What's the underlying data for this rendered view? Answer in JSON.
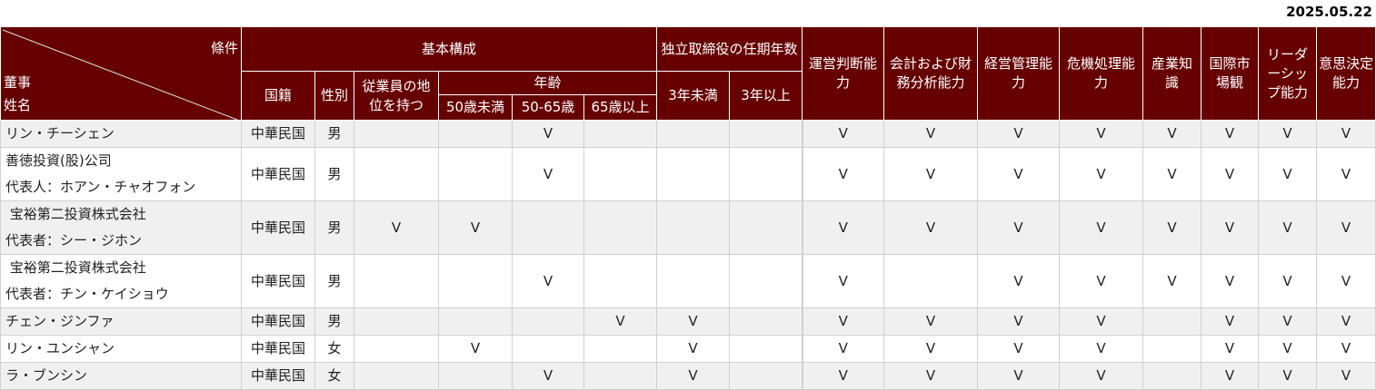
{
  "date": "2025.05.22",
  "header": {
    "corner_condition": "條件",
    "corner_director": "董事",
    "corner_name": "姓名",
    "basic": "基本構成",
    "nationality": "国籍",
    "gender": "性別",
    "employee": "従業員の地位を持つ",
    "age": "年齢",
    "age_under50": "50歳未満",
    "age_50_65": "50-65歳",
    "age_over65": "65歳以上",
    "tenure": "独立取締役の任期年数",
    "tenure_under3": "3年未満",
    "tenure_over3": "3年以上",
    "skills": [
      "運営判断能力",
      "会計および財務分析能力",
      "経営管理能力",
      "危機処理能力",
      "産業知識",
      "国際市場観",
      "リーダーシップ能力",
      "意思決定能力"
    ]
  },
  "check_mark": "V",
  "rows": [
    {
      "name": [
        "リン・チーシェン"
      ],
      "nationality": "中華民国",
      "gender": "男",
      "marks": [
        0,
        0,
        1,
        0,
        0,
        0,
        1,
        1,
        1,
        1,
        1,
        1,
        1,
        1
      ]
    },
    {
      "name": [
        "善徳投資(股)公司",
        "代表人：ホアン・チャオフォン"
      ],
      "nationality": "中華民国",
      "gender": "男",
      "marks": [
        0,
        0,
        1,
        0,
        0,
        0,
        1,
        1,
        1,
        1,
        1,
        1,
        1,
        1
      ]
    },
    {
      "name": [
        " 宝裕第二投資株式会社",
        "代表者：シー・ジホン"
      ],
      "nationality": "中華民国",
      "gender": "男",
      "marks": [
        1,
        1,
        0,
        0,
        0,
        0,
        1,
        1,
        1,
        1,
        1,
        1,
        1,
        1
      ]
    },
    {
      "name": [
        " 宝裕第二投資株式会社",
        "代表者：チン・ケイショウ"
      ],
      "nationality": "中華民国",
      "gender": "男",
      "marks": [
        0,
        0,
        1,
        0,
        0,
        0,
        1,
        0,
        1,
        1,
        1,
        1,
        1,
        1
      ]
    },
    {
      "name": [
        "チェン・ジンファ"
      ],
      "nationality": "中華民国",
      "gender": "男",
      "marks": [
        0,
        0,
        0,
        1,
        1,
        0,
        1,
        1,
        1,
        1,
        0,
        1,
        1,
        1
      ]
    },
    {
      "name": [
        "リン・ユンシャン"
      ],
      "nationality": "中華民国",
      "gender": "女",
      "marks": [
        0,
        1,
        0,
        0,
        1,
        0,
        1,
        1,
        1,
        1,
        0,
        1,
        1,
        1
      ]
    },
    {
      "name": [
        "ラ・ブンシン"
      ],
      "nationality": "中華民国",
      "gender": "女",
      "marks": [
        0,
        0,
        1,
        0,
        1,
        0,
        1,
        1,
        1,
        1,
        0,
        1,
        1,
        1
      ]
    }
  ]
}
